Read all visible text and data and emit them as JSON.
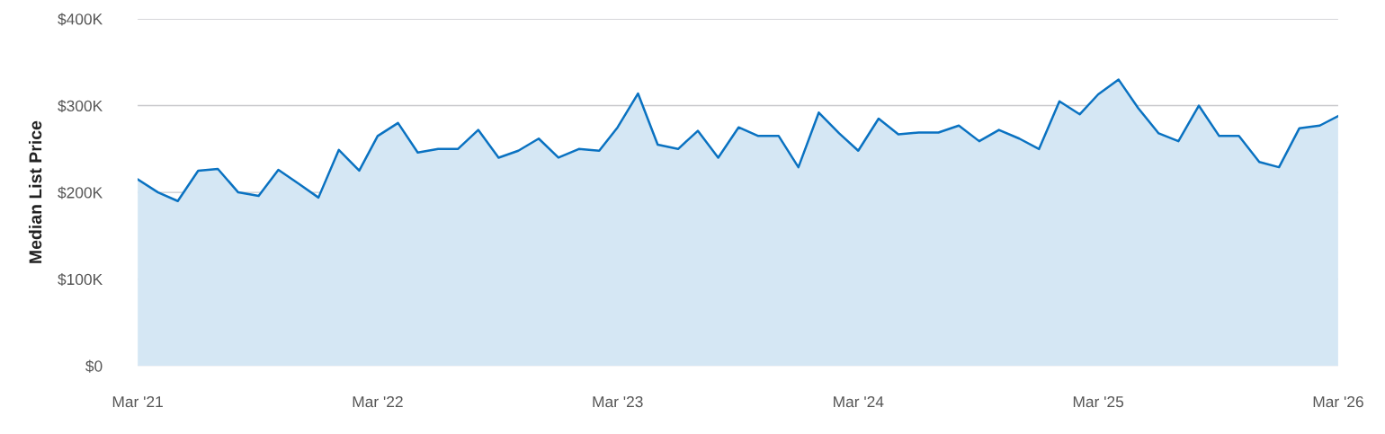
{
  "chart_data": {
    "type": "area",
    "ylabel": "Median List Price",
    "x": [
      "2021-03",
      "2021-04",
      "2021-05",
      "2021-06",
      "2021-07",
      "2021-08",
      "2021-09",
      "2021-10",
      "2021-11",
      "2021-12",
      "2022-01",
      "2022-02",
      "2022-03",
      "2022-04",
      "2022-05",
      "2022-06",
      "2022-07",
      "2022-08",
      "2022-09",
      "2022-10",
      "2022-11",
      "2022-12",
      "2023-01",
      "2023-02",
      "2023-03",
      "2023-04",
      "2023-05",
      "2023-06",
      "2023-07",
      "2023-08",
      "2023-09",
      "2023-10",
      "2023-11",
      "2023-12",
      "2024-01",
      "2024-02",
      "2024-03",
      "2024-04",
      "2024-05",
      "2024-06",
      "2024-07",
      "2024-08",
      "2024-09",
      "2024-10",
      "2024-11",
      "2024-12",
      "2025-01",
      "2025-02",
      "2025-03",
      "2025-04",
      "2025-05",
      "2025-06",
      "2025-07",
      "2025-08",
      "2025-09",
      "2025-10",
      "2025-11",
      "2025-12",
      "2026-01",
      "2026-02",
      "2026-03"
    ],
    "series": [
      {
        "color": "#0a72c1",
        "values": [
          215,
          200,
          190,
          225,
          227,
          200,
          196,
          226,
          210,
          194,
          249,
          225,
          265,
          280,
          246,
          250,
          250,
          272,
          240,
          248,
          262,
          240,
          250,
          248,
          275,
          314,
          255,
          250,
          271,
          240,
          275,
          265,
          265,
          229,
          292,
          268,
          248,
          285,
          267,
          269,
          269,
          277,
          259,
          272,
          262,
          250,
          305,
          290,
          313,
          330,
          297,
          268,
          259,
          300,
          265,
          265,
          235,
          229,
          274,
          277,
          288
        ]
      }
    ],
    "xlim": [
      "2021-03",
      "2026-03"
    ],
    "xticks": [
      {
        "value": "2021-03",
        "label": "Mar '21"
      },
      {
        "value": "2022-03",
        "label": "Mar '22"
      },
      {
        "value": "2023-03",
        "label": "Mar '23"
      },
      {
        "value": "2024-03",
        "label": "Mar '24"
      },
      {
        "value": "2025-03",
        "label": "Mar '25"
      },
      {
        "value": "2026-03",
        "label": "Mar '26"
      }
    ],
    "ylim": [
      0,
      400
    ],
    "yticks": [
      {
        "value": 0,
        "label": "$0"
      },
      {
        "value": 100,
        "label": "$100K"
      },
      {
        "value": 200,
        "label": "$200K"
      },
      {
        "value": 300,
        "label": "$300K"
      },
      {
        "value": 400,
        "label": "$400K"
      }
    ],
    "grid": "y",
    "legend": false,
    "marker": "none",
    "line_style": "solid"
  }
}
